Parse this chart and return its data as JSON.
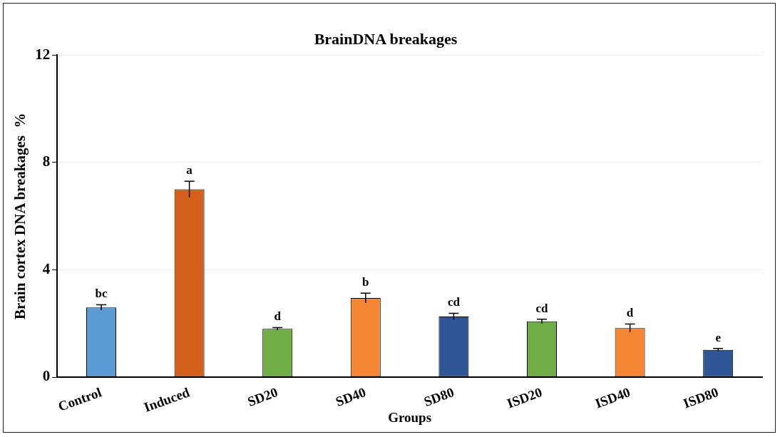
{
  "chart_data": {
    "type": "bar",
    "title": "BrainDNA breakages",
    "xlabel": "Groups",
    "ylabel": "Brain cortex DNA breakages  %",
    "categories": [
      "Control",
      "Induced",
      "SD20",
      "SD40",
      "SD80",
      "ISD20",
      "ISD40",
      "ISD80"
    ],
    "values": [
      2.6,
      7.0,
      1.8,
      2.95,
      2.26,
      2.08,
      1.83,
      1.02
    ],
    "errors": [
      0.1,
      0.3,
      0.05,
      0.18,
      0.12,
      0.08,
      0.15,
      0.05
    ],
    "colors": [
      "#5b9bd5",
      "#d2601a",
      "#70ad47",
      "#f58634",
      "#2f5597",
      "#70ad47",
      "#f58634",
      "#2f5597"
    ],
    "ylim": [
      0,
      12
    ],
    "yticks": [
      0,
      4,
      8,
      12
    ],
    "grid": "y",
    "legend": false,
    "annotations": [
      {
        "text": "bc",
        "x": "Control",
        "y": 2.7
      },
      {
        "text": "a",
        "x": "Induced",
        "y": 7.3
      },
      {
        "text": "d",
        "x": "SD20",
        "y": 1.85
      },
      {
        "text": "b",
        "x": "SD40",
        "y": 3.13
      },
      {
        "text": "cd",
        "x": "SD80",
        "y": 2.38
      },
      {
        "text": "cd",
        "x": "ISD20",
        "y": 2.16
      },
      {
        "text": "d",
        "x": "ISD40",
        "y": 1.98
      },
      {
        "text": "e",
        "x": "ISD80",
        "y": 1.05
      }
    ]
  }
}
